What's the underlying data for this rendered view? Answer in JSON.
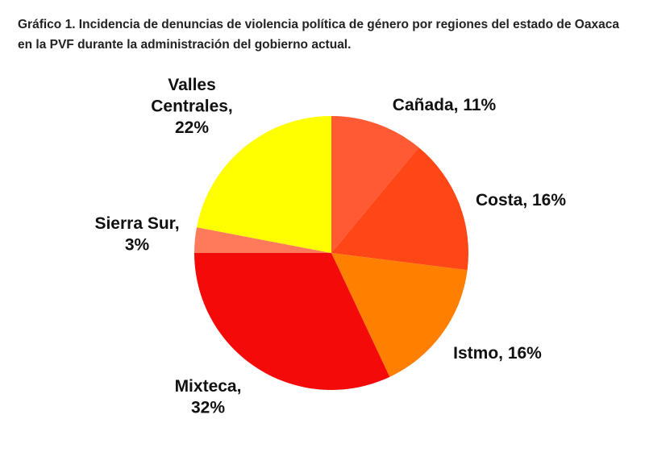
{
  "chart_data": {
    "type": "pie",
    "title": "Gráfico 1. Incidencia de denuncias de violencia política de género por regiones del estado de Oaxaca en la PVF durante la administración del gobierno actual.",
    "values": [
      11,
      16,
      16,
      32,
      3,
      22
    ],
    "value_labels": [
      [
        "Cañada, 11%"
      ],
      [
        "Costa, 16%"
      ],
      [
        "Istmo, 16%"
      ],
      [
        "Mixteca,",
        "32%"
      ],
      [
        "Sierra Sur,",
        "3%"
      ],
      [
        "Valles",
        "Centrales,",
        "22%"
      ]
    ],
    "colors": [
      "#ff5a33",
      "#ff4616",
      "#ff8000",
      "#f50a0a",
      "#ff7a5a",
      "#ffff00"
    ]
  }
}
